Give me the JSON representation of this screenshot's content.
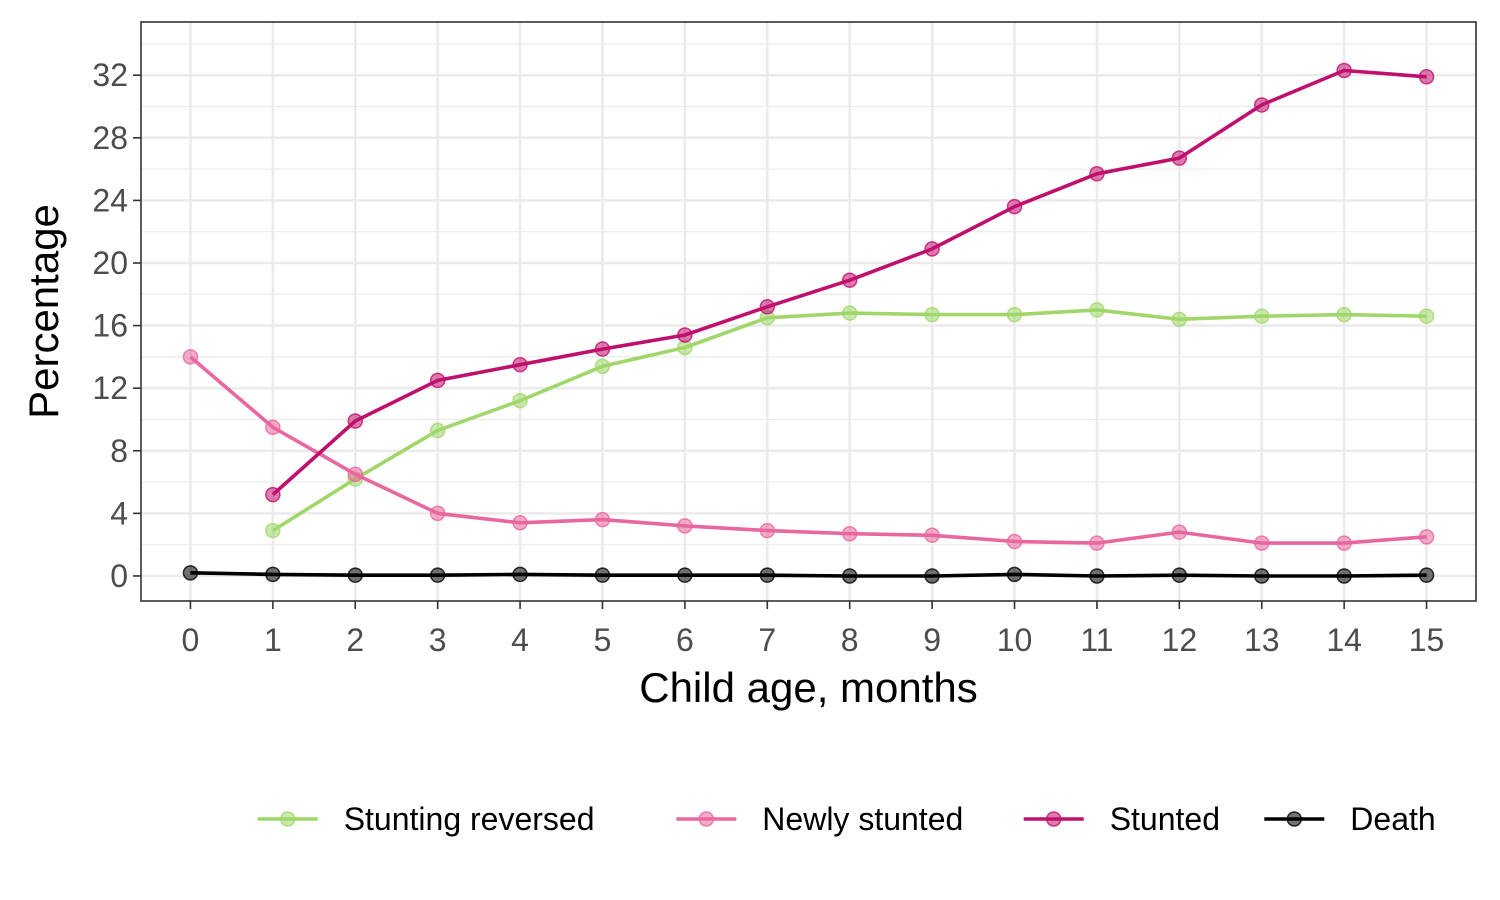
{
  "chart_data": {
    "type": "line",
    "xlabel": "Child age, months",
    "ylabel": "Percentage",
    "x": [
      0,
      1,
      2,
      3,
      4,
      5,
      6,
      7,
      8,
      9,
      10,
      11,
      12,
      13,
      14,
      15
    ],
    "xlim": [
      -0.6,
      15.6
    ],
    "ylim": [
      -1.6,
      35.4
    ],
    "y_ticks": [
      0,
      4,
      8,
      12,
      16,
      20,
      24,
      28,
      32
    ],
    "grid": true,
    "legend_position": "bottom",
    "series": [
      {
        "name": "Stunting reversed",
        "color": "#a1d76a",
        "values": [
          null,
          2.9,
          6.2,
          9.3,
          11.2,
          13.4,
          14.6,
          16.5,
          16.8,
          16.7,
          16.7,
          17.0,
          16.4,
          16.6,
          16.7,
          16.6
        ]
      },
      {
        "name": "Newly stunted",
        "color": "#e9679f",
        "values": [
          14.0,
          9.5,
          6.5,
          4.0,
          3.4,
          3.6,
          3.2,
          2.9,
          2.7,
          2.6,
          2.2,
          2.1,
          2.8,
          2.1,
          2.1,
          2.5
        ]
      },
      {
        "name": "Stunted",
        "color": "#c0106e",
        "values": [
          null,
          5.2,
          9.9,
          12.5,
          13.5,
          14.5,
          15.4,
          17.2,
          18.9,
          20.9,
          23.6,
          25.7,
          26.7,
          30.1,
          32.3,
          31.9
        ]
      },
      {
        "name": "Death",
        "color": "#000000",
        "values": [
          0.2,
          0.1,
          0.05,
          0.05,
          0.1,
          0.05,
          0.05,
          0.05,
          0.0,
          0.0,
          0.1,
          0.0,
          0.05,
          0.0,
          0.0,
          0.05
        ]
      }
    ]
  }
}
